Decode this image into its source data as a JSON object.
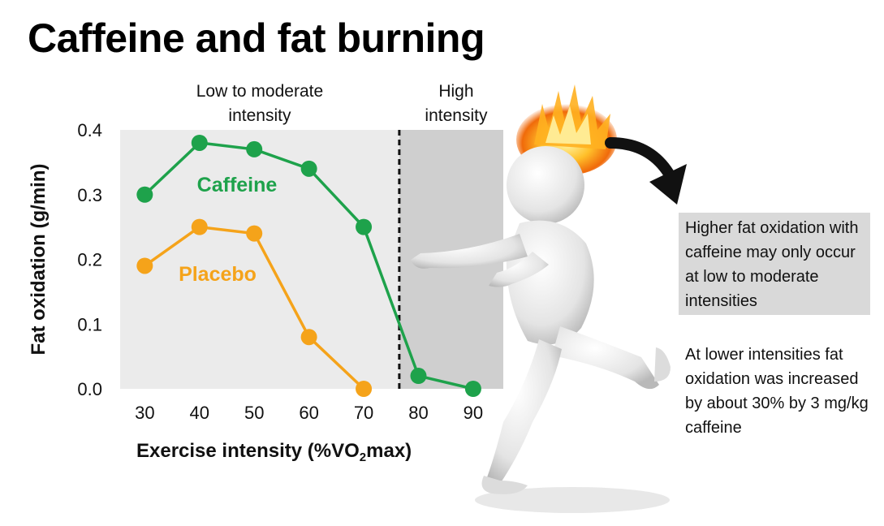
{
  "title": "Caffeine and fat burning",
  "chart_data": {
    "type": "line",
    "x": [
      30,
      40,
      50,
      60,
      70,
      80,
      90
    ],
    "xlim": [
      25.5,
      95.5
    ],
    "ylim": [
      0,
      0.4
    ],
    "y_ticks": [
      "0.0",
      "0.1",
      "0.2",
      "0.3",
      "0.4"
    ],
    "x_ticks": [
      "30",
      "40",
      "50",
      "60",
      "70",
      "80",
      "90"
    ],
    "xlabel": {
      "pre": "Exercise intensity (%VO",
      "sub": "2",
      "post": "max)"
    },
    "ylabel": "Fat oxidation (g/min)",
    "grid": false,
    "series": [
      {
        "name": "Caffeine",
        "color": "#1ea24b",
        "values": [
          0.3,
          0.38,
          0.37,
          0.34,
          0.25,
          0.02,
          0.0
        ]
      },
      {
        "name": "Placebo",
        "color": "#f5a31a",
        "values": [
          0.19,
          0.25,
          0.24,
          0.08,
          0.0,
          null,
          null
        ]
      }
    ],
    "regions": [
      {
        "label_lines": [
          "Low to moderate",
          "intensity"
        ],
        "from": 25.5,
        "to": 76.5,
        "color": "#ebebeb"
      },
      {
        "label_lines": [
          "High",
          "intensity"
        ],
        "from": 76.5,
        "to": 95.5,
        "color": "#cfcfcf"
      }
    ],
    "threshold_x": 76.5
  },
  "annotations": {
    "callout": "Higher fat oxidation with caffeine may only occur at low to moderate intensities",
    "note": "At lower intensities fat oxidation was increased by about 30% by 3 mg/kg caffeine"
  },
  "illustration": {
    "icon": "running-figure-with-flaming-head-icon",
    "arrow": "curved-arrow-icon"
  }
}
